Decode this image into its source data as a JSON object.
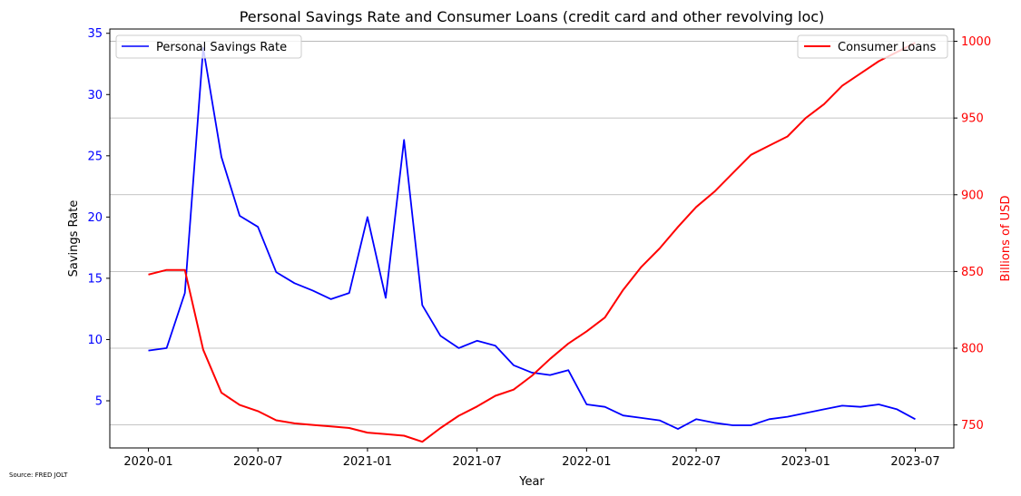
{
  "chart_data": {
    "type": "line",
    "title": "Personal Savings Rate and Consumer Loans (credit card and other revolving loc)",
    "xlabel": "Year",
    "ylabel_left": "Savings Rate",
    "ylabel_right": "Billions of USD",
    "left_color": "#0000ff",
    "right_color": "#ff0000",
    "x_tick_labels": [
      "2020-01",
      "2020-07",
      "2021-01",
      "2021-07",
      "2022-01",
      "2022-07",
      "2023-01",
      "2023-07"
    ],
    "left_ticks": [
      5,
      10,
      15,
      20,
      25,
      30,
      35
    ],
    "right_ticks": [
      750,
      800,
      850,
      900,
      950,
      1000
    ],
    "left_ylim": [
      1.15,
      35.35
    ],
    "right_ylim": [
      735,
      1008
    ],
    "grid": "horizontal (right axis)",
    "x": [
      "2020-01",
      "2020-02",
      "2020-03",
      "2020-04",
      "2020-05",
      "2020-06",
      "2020-07",
      "2020-08",
      "2020-09",
      "2020-10",
      "2020-11",
      "2020-12",
      "2021-01",
      "2021-02",
      "2021-03",
      "2021-04",
      "2021-05",
      "2021-06",
      "2021-07",
      "2021-08",
      "2021-09",
      "2021-10",
      "2021-11",
      "2021-12",
      "2022-01",
      "2022-02",
      "2022-03",
      "2022-04",
      "2022-05",
      "2022-06",
      "2022-07",
      "2022-08",
      "2022-09",
      "2022-10",
      "2022-11",
      "2022-12",
      "2023-01",
      "2023-02",
      "2023-03",
      "2023-04",
      "2023-05",
      "2023-06",
      "2023-07"
    ],
    "series": [
      {
        "name": "Personal Savings Rate",
        "axis": "left",
        "color": "#0000ff",
        "legend_position": "upper left",
        "values": [
          9.1,
          9.3,
          13.8,
          33.8,
          24.9,
          20.1,
          19.2,
          15.5,
          14.6,
          14.0,
          13.3,
          13.8,
          20.0,
          13.4,
          26.3,
          12.8,
          10.3,
          9.3,
          9.9,
          9.5,
          7.9,
          7.3,
          7.1,
          7.5,
          4.7,
          4.5,
          3.8,
          3.6,
          3.4,
          2.7,
          3.5,
          3.2,
          3.0,
          3.0,
          3.5,
          3.7,
          4.0,
          4.3,
          4.6,
          4.5,
          4.7,
          4.3,
          3.5
        ]
      },
      {
        "name": "Consumer Loans",
        "axis": "right",
        "color": "#ff0000",
        "legend_position": "upper right",
        "values": [
          848,
          851,
          851,
          799,
          771,
          763,
          759,
          753,
          751,
          750,
          749,
          748,
          745,
          744,
          743,
          739,
          748,
          756,
          762,
          769,
          773,
          782,
          793,
          803,
          811,
          820,
          838,
          853,
          865,
          879,
          892,
          902,
          914,
          926,
          932,
          938,
          950,
          959,
          971,
          979,
          987,
          993,
          999
        ]
      }
    ]
  },
  "footer": {
    "source": "Source: FRED JOLT"
  }
}
